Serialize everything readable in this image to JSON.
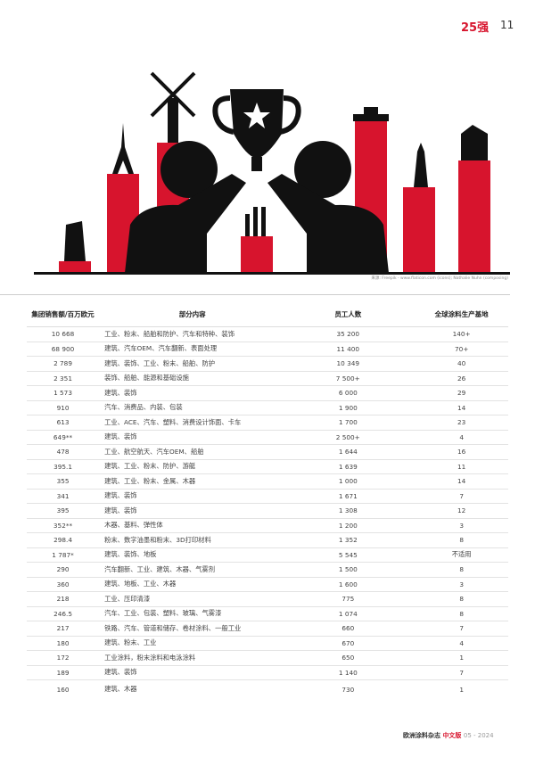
{
  "header": {
    "section": "25强",
    "page": "11"
  },
  "illustration": {
    "credit": "来源: Freepik - www.flaticon.com (icons); Nathalie Nuhn (composing)",
    "colors": {
      "red": "#d7142d",
      "black": "#111111"
    }
  },
  "table": {
    "headers": [
      "集团销售额/百万欧元",
      "部分内容",
      "员工人数",
      "全球涂料生产基地"
    ],
    "rows": [
      [
        "10 668",
        "工业、粉末、船舶和防护、汽车和特种、装饰",
        "35 200",
        "140+"
      ],
      [
        "68 900",
        "建筑、汽车OEM、汽车翻新、表面处理",
        "11 400",
        "70+"
      ],
      [
        "2 789",
        "建筑、装饰、工业、粉末、船舶、防护",
        "10 349",
        "40"
      ],
      [
        "2 351",
        "装饰、船舶、能源和基础设施",
        "7 500+",
        "26"
      ],
      [
        "1 573",
        "建筑、装饰",
        "6 000",
        "29"
      ],
      [
        "910",
        "汽车、消费品、内装、包装",
        "1 900",
        "14"
      ],
      [
        "613",
        "工业、ACE、汽车、塑料、消费设计饰面、卡车",
        "1 700",
        "23"
      ],
      [
        "649**",
        "建筑、装饰",
        "2 500+",
        "4"
      ],
      [
        "478",
        "工业、航空航天、汽车OEM、船舶",
        "1 644",
        "16"
      ],
      [
        "395.1",
        "建筑、工业、粉末、防护、游艇",
        "1 639",
        "11"
      ],
      [
        "355",
        "建筑、工业、粉末、金属、木器",
        "1 000",
        "14"
      ],
      [
        "341",
        "建筑、装饰",
        "1 671",
        "7"
      ],
      [
        "395",
        "建筑、装饰",
        "1 308",
        "12"
      ],
      [
        "352**",
        "木器、基料、弹性体",
        "1 200",
        "3"
      ],
      [
        "298.4",
        "粉末、数字油墨和粉末、3D打印材料",
        "1 352",
        "8"
      ],
      [
        "1 787*",
        "建筑、装饰、地板",
        "5 545",
        "不适用"
      ],
      [
        "290",
        "汽车翻新、工业、建筑、木器、气雾剂",
        "1 500",
        "8"
      ],
      [
        "360",
        "建筑、地板、工业、木器",
        "1 600",
        "3"
      ],
      [
        "218",
        "工业、压印清漆",
        "775",
        "8"
      ],
      [
        "246.5",
        "汽车、工业、包装、塑料、玻璃、气雾漆",
        "1 074",
        "8"
      ],
      [
        "217",
        "铁路、汽车、管道和储存、卷材涂料、一般工业",
        "660",
        "7"
      ],
      [
        "180",
        "建筑、粉末、工业",
        "670",
        "4"
      ],
      [
        "172",
        "工业涂料，粉末涂料和电泳涂料",
        "650",
        "1"
      ],
      [
        "189",
        "建筑、装饰",
        "1 140",
        "7"
      ],
      [
        "160",
        "建筑、木器",
        "730",
        "1"
      ]
    ]
  },
  "footer": {
    "magazine": "欧洲涂料杂志",
    "edition": "中文版",
    "issue": "05 - 2024"
  }
}
